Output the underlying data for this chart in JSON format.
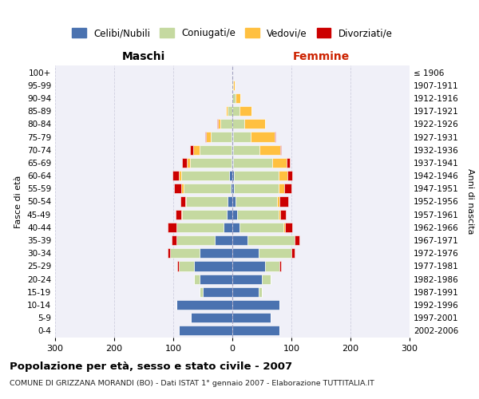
{
  "age_groups": [
    "0-4",
    "5-9",
    "10-14",
    "15-19",
    "20-24",
    "25-29",
    "30-34",
    "35-39",
    "40-44",
    "45-49",
    "50-54",
    "55-59",
    "60-64",
    "65-69",
    "70-74",
    "75-79",
    "80-84",
    "85-89",
    "90-94",
    "95-99",
    "100+"
  ],
  "birth_years": [
    "2002-2006",
    "1997-2001",
    "1992-1996",
    "1987-1991",
    "1982-1986",
    "1977-1981",
    "1972-1976",
    "1967-1971",
    "1962-1966",
    "1957-1961",
    "1952-1956",
    "1947-1951",
    "1942-1946",
    "1937-1941",
    "1932-1936",
    "1927-1931",
    "1922-1926",
    "1917-1921",
    "1912-1916",
    "1907-1911",
    "≤ 1906"
  ],
  "males": {
    "celibi": [
      90,
      70,
      95,
      50,
      55,
      65,
      55,
      30,
      15,
      10,
      8,
      3,
      6,
      2,
      1,
      1,
      0,
      0,
      0,
      0,
      0
    ],
    "coniugati": [
      0,
      0,
      0,
      5,
      10,
      25,
      50,
      65,
      80,
      75,
      70,
      80,
      80,
      70,
      55,
      35,
      20,
      8,
      2,
      1,
      0
    ],
    "vedovi": [
      0,
      0,
      0,
      0,
      0,
      0,
      0,
      0,
      0,
      1,
      2,
      3,
      5,
      5,
      10,
      8,
      5,
      3,
      0,
      0,
      0
    ],
    "divorziati": [
      0,
      0,
      0,
      0,
      0,
      3,
      5,
      8,
      15,
      10,
      8,
      12,
      10,
      8,
      5,
      2,
      1,
      0,
      0,
      0,
      0
    ]
  },
  "females": {
    "nubili": [
      80,
      65,
      80,
      45,
      50,
      55,
      45,
      25,
      12,
      8,
      5,
      3,
      3,
      2,
      1,
      1,
      0,
      0,
      0,
      0,
      0
    ],
    "coniugate": [
      0,
      0,
      0,
      5,
      15,
      25,
      55,
      80,
      75,
      70,
      70,
      75,
      75,
      65,
      45,
      30,
      20,
      12,
      5,
      2,
      0
    ],
    "vedove": [
      0,
      0,
      0,
      0,
      0,
      0,
      0,
      0,
      2,
      3,
      5,
      10,
      15,
      25,
      35,
      40,
      35,
      20,
      8,
      2,
      0
    ],
    "divorziate": [
      0,
      0,
      0,
      0,
      0,
      2,
      5,
      8,
      12,
      10,
      15,
      12,
      8,
      5,
      2,
      2,
      0,
      0,
      0,
      0,
      0
    ]
  },
  "colors": {
    "celibi": "#4a72b0",
    "coniugati": "#c5d9a0",
    "vedovi": "#ffc040",
    "divorziati": "#cc0000"
  },
  "xlim": 300,
  "title": "Popolazione per età, sesso e stato civile - 2007",
  "subtitle": "COMUNE DI GRIZZANA MORANDI (BO) - Dati ISTAT 1° gennaio 2007 - Elaborazione TUTTITALIA.IT",
  "xlabel_left": "Maschi",
  "xlabel_right": "Femmine",
  "ylabel_left": "Fasce di età",
  "ylabel_right": "Anni di nascita",
  "legend_labels": [
    "Celibi/Nubili",
    "Coniugati/e",
    "Vedovi/e",
    "Divorziati/e"
  ],
  "bg_color": "#f0f0f8",
  "grid_color": "#ccccdd"
}
